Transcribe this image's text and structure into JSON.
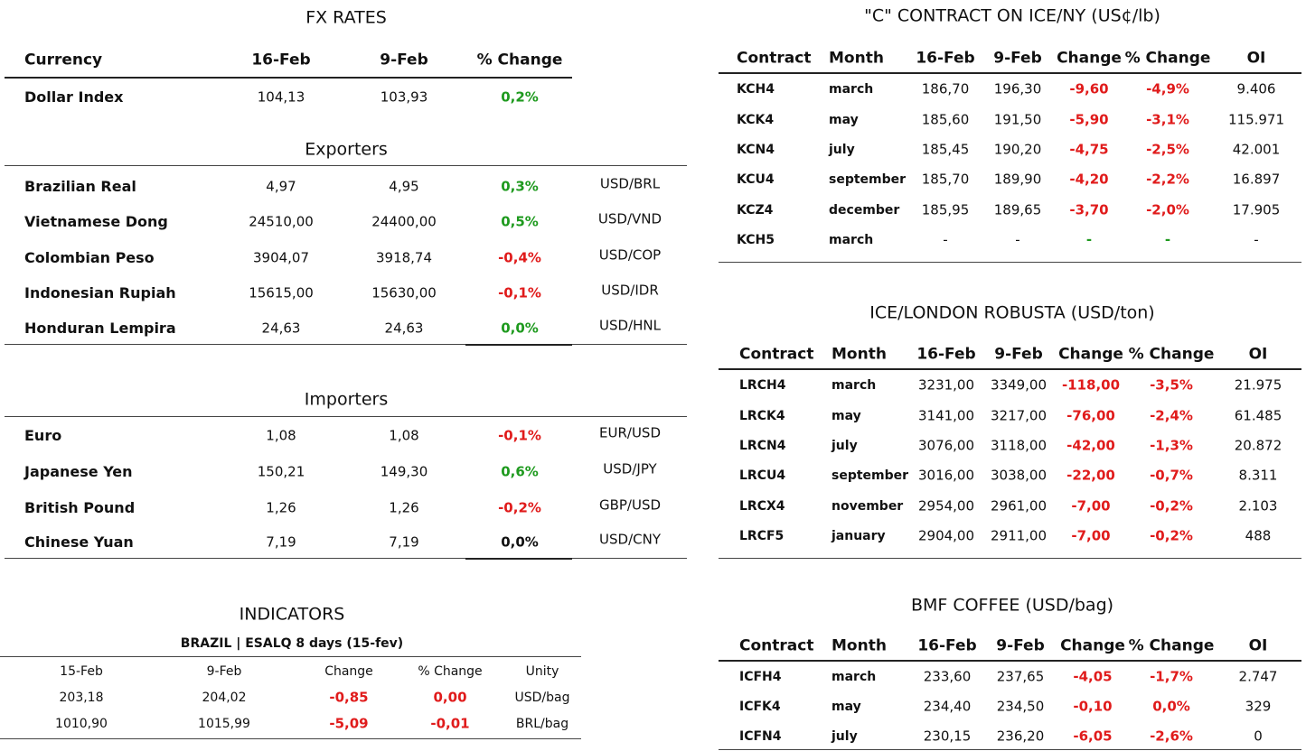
{
  "fx_rates": {
    "title": "FX RATES",
    "header": [
      "Currency",
      "16-Feb",
      "9-Feb",
      "% Change"
    ],
    "dollar_index": [
      "Dollar Index",
      "104,13",
      "103,93",
      "0,2%"
    ],
    "dollar_index_color": "#1e9a1e",
    "exporters": {
      "title": "Exporters",
      "rows": [
        [
          "Brazilian Real",
          "4,97",
          "4,95",
          "0,3%",
          "USD/BRL"
        ],
        [
          "Vietnamese Dong",
          "24510,00",
          "24400,00",
          "0,5%",
          "USD/VND"
        ],
        [
          "Colombian Peso",
          "3904,07",
          "3918,74",
          "-0,4%",
          "USD/COP"
        ],
        [
          "Indonesian Rupiah",
          "15615,00",
          "15630,00",
          "-0,1%",
          "USD/IDR"
        ],
        [
          "Honduran Lempira",
          "24,63",
          "24,63",
          "0,0%",
          "USD/HNL"
        ]
      ],
      "change_colors": [
        "#1e9a1e",
        "#1e9a1e",
        "#e01b1b",
        "#e01b1b",
        "#1e9a1e"
      ]
    },
    "importers": {
      "title": "Importers",
      "rows": [
        [
          "Euro",
          "1,08",
          "1,08",
          "-0,1%",
          "EUR/USD"
        ],
        [
          "Japanese Yen",
          "150,21",
          "149,30",
          "0,6%",
          "USD/JPY"
        ],
        [
          "British Pound",
          "1,26",
          "1,26",
          "-0,2%",
          "GBP/USD"
        ],
        [
          "Chinese Yuan",
          "7,19",
          "7,19",
          "0,0%",
          "USD/CNY"
        ]
      ],
      "change_colors": [
        "#e01b1b",
        "#1e9a1e",
        "#e01b1b",
        "#111111"
      ]
    }
  },
  "indicators": {
    "title": "INDICATORS",
    "subtitle": "BRAZIL | ESALQ 8 days (15-fev)",
    "header": [
      "15-Feb",
      "9-Feb",
      "Change",
      "% Change",
      "Unity"
    ],
    "rows": [
      [
        "203,18",
        "204,02",
        "-0,85",
        "0,00",
        "USD/bag"
      ],
      [
        "1010,90",
        "1015,99",
        "-5,09",
        "-0,01",
        "BRL/bag"
      ]
    ],
    "change_colors": [
      "#e01b1b",
      "#e01b1b"
    ]
  },
  "c_contract": {
    "title": "\"C\" CONTRACT ON ICE/NY (US¢/lb)",
    "header": [
      "Contract",
      "Month",
      "16-Feb",
      "9-Feb",
      "Change",
      "% Change",
      "OI"
    ],
    "rows": [
      [
        "KCH4",
        "march",
        "186,70",
        "196,30",
        "-9,60",
        "-4,9%",
        "9.406"
      ],
      [
        "KCK4",
        "may",
        "185,60",
        "191,50",
        "-5,90",
        "-3,1%",
        "115.971"
      ],
      [
        "KCN4",
        "july",
        "185,45",
        "190,20",
        "-4,75",
        "-2,5%",
        "42.001"
      ],
      [
        "KCU4",
        "september",
        "185,70",
        "189,90",
        "-4,20",
        "-2,2%",
        "16.897"
      ],
      [
        "KCZ4",
        "december",
        "185,95",
        "189,65",
        "-3,70",
        "-2,0%",
        "17.905"
      ],
      [
        "KCH5",
        "march",
        "-",
        "-",
        "-",
        "-",
        "-"
      ]
    ],
    "change_colors": [
      "#e01b1b",
      "#e01b1b",
      "#e01b1b",
      "#e01b1b",
      "#e01b1b",
      "#1e9a1e"
    ]
  },
  "robusta": {
    "title": "ICE/LONDON ROBUSTA (USD/ton)",
    "header": [
      "Contract",
      "Month",
      "16-Feb",
      "9-Feb",
      "Change",
      "% Change",
      "OI"
    ],
    "rows": [
      [
        "LRCH4",
        "march",
        "3231,00",
        "3349,00",
        "-118,00",
        "-3,5%",
        "21.975"
      ],
      [
        "LRCK4",
        "may",
        "3141,00",
        "3217,00",
        "-76,00",
        "-2,4%",
        "61.485"
      ],
      [
        "LRCN4",
        "july",
        "3076,00",
        "3118,00",
        "-42,00",
        "-1,3%",
        "20.872"
      ],
      [
        "LRCU4",
        "september",
        "3016,00",
        "3038,00",
        "-22,00",
        "-0,7%",
        "8.311"
      ],
      [
        "LRCX4",
        "november",
        "2954,00",
        "2961,00",
        "-7,00",
        "-0,2%",
        "2.103"
      ],
      [
        "LRCF5",
        "january",
        "2904,00",
        "2911,00",
        "-7,00",
        "-0,2%",
        "488"
      ]
    ],
    "change_colors": [
      "#e01b1b",
      "#e01b1b",
      "#e01b1b",
      "#e01b1b",
      "#e01b1b",
      "#e01b1b"
    ]
  },
  "bmf": {
    "title": "BMF COFFEE (USD/bag)",
    "header": [
      "Contract",
      "Month",
      "16-Feb",
      "9-Feb",
      "Change",
      "% Change",
      "OI"
    ],
    "rows": [
      [
        "ICFH4",
        "march",
        "233,60",
        "237,65",
        "-4,05",
        "-1,7%",
        "2.747"
      ],
      [
        "ICFK4",
        "may",
        "234,40",
        "234,50",
        "-0,10",
        "0,0%",
        "329"
      ],
      [
        "ICFN4",
        "july",
        "230,15",
        "236,20",
        "-6,05",
        "-2,6%",
        "0"
      ]
    ],
    "change_colors": [
      "#e01b1b",
      "#e01b1b",
      "#e01b1b"
    ]
  }
}
